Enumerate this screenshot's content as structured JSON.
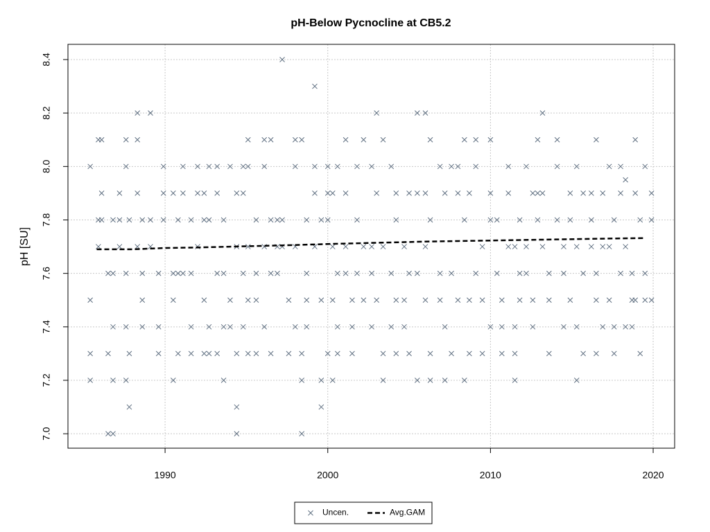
{
  "chart_data": {
    "type": "scatter",
    "title": "pH-Below Pycnocline at CB5.2",
    "y_label": "pH [SU]",
    "xlim": [
      1984.03,
      2021.32
    ],
    "ylim": [
      6.946,
      8.457
    ],
    "xticks": [
      1990,
      2000,
      2010,
      2020
    ],
    "yticks": [
      {
        "value": 7,
        "label": "7.0"
      },
      7.2,
      7.4,
      7.6,
      7.8,
      {
        "value": 8,
        "label": "8.0"
      },
      8.2,
      8.4
    ],
    "grid": true,
    "legend": "bottom",
    "series": [
      {
        "name": "Uncen.",
        "color": "#5e6e80",
        "marker": "x",
        "x": [
          1985.4,
          1985.4,
          1985.4,
          1985.4,
          1985.9,
          1985.9,
          1985.9,
          1986.1,
          1986.1,
          1986.1,
          1986.5,
          1986.5,
          1986.5,
          1986.8,
          1986.8,
          1986.8,
          1986.8,
          1986.8,
          1987.2,
          1987.2,
          1987.2,
          1987.6,
          1987.6,
          1987.6,
          1987.6,
          1987.6,
          1987.8,
          1987.8,
          1987.8,
          1988.3,
          1988.3,
          1988.3,
          1988.3,
          1988.6,
          1988.6,
          1988.6,
          1988.6,
          1989.1,
          1989.1,
          1989.1,
          1989.6,
          1989.6,
          1989.6,
          1989.9,
          1989.9,
          1989.9,
          1990.5,
          1990.5,
          1990.5,
          1990.5,
          1990.8,
          1990.8,
          1990.8,
          1991.1,
          1991.1,
          1991.1,
          1991.6,
          1991.6,
          1991.6,
          1991.6,
          1992.0,
          1992.0,
          1992.0,
          1992.4,
          1992.4,
          1992.4,
          1992.4,
          1992.7,
          1992.7,
          1992.7,
          1992.7,
          1993.2,
          1993.2,
          1993.2,
          1993.2,
          1993.6,
          1993.6,
          1993.6,
          1993.6,
          1994.0,
          1994.0,
          1994.0,
          1994.4,
          1994.4,
          1994.4,
          1994.4,
          1994.4,
          1994.8,
          1994.8,
          1994.8,
          1994.8,
          1995.1,
          1995.1,
          1995.1,
          1995.1,
          1995.1,
          1995.6,
          1995.6,
          1995.6,
          1995.6,
          1996.1,
          1996.1,
          1996.1,
          1996.1,
          1996.5,
          1996.5,
          1996.5,
          1996.5,
          1996.9,
          1996.9,
          1996.9,
          1997.2,
          1997.2,
          1997.2,
          1997.6,
          1997.6,
          1998.0,
          1998.0,
          1998.0,
          1998.0,
          1998.4,
          1998.4,
          1998.4,
          1998.4,
          1998.7,
          1998.7,
          1998.7,
          1998.7,
          1999.2,
          1999.2,
          1999.2,
          1999.2,
          1999.6,
          1999.6,
          1999.6,
          1999.6,
          2000.0,
          2000.0,
          2000.0,
          2000.0,
          2000.3,
          2000.3,
          2000.3,
          2000.3,
          2000.6,
          2000.6,
          2000.6,
          2000.6,
          2001.1,
          2001.1,
          2001.1,
          2001.1,
          2001.5,
          2001.5,
          2001.5,
          2001.8,
          2001.8,
          2001.8,
          2002.2,
          2002.2,
          2002.2,
          2002.7,
          2002.7,
          2002.7,
          2002.7,
          2003.0,
          2003.0,
          2003.0,
          2003.4,
          2003.4,
          2003.4,
          2003.4,
          2003.9,
          2003.9,
          2003.9,
          2004.2,
          2004.2,
          2004.2,
          2004.2,
          2004.7,
          2004.7,
          2004.7,
          2005.0,
          2005.0,
          2005.0,
          2005.5,
          2005.5,
          2005.5,
          2005.5,
          2006.0,
          2006.0,
          2006.0,
          2006.0,
          2006.3,
          2006.3,
          2006.3,
          2006.3,
          2006.9,
          2006.9,
          2006.9,
          2007.2,
          2007.2,
          2007.2,
          2007.6,
          2007.6,
          2007.6,
          2008.0,
          2008.0,
          2008.0,
          2008.4,
          2008.4,
          2008.4,
          2008.7,
          2008.7,
          2008.7,
          2009.1,
          2009.1,
          2009.1,
          2009.5,
          2009.5,
          2009.5,
          2010.0,
          2010.0,
          2010.0,
          2010.0,
          2010.4,
          2010.4,
          2010.7,
          2010.7,
          2010.7,
          2011.1,
          2011.1,
          2011.1,
          2011.5,
          2011.5,
          2011.5,
          2011.5,
          2011.8,
          2011.8,
          2011.8,
          2012.2,
          2012.2,
          2012.2,
          2012.6,
          2012.6,
          2012.6,
          2012.9,
          2012.9,
          2012.9,
          2013.2,
          2013.2,
          2013.2,
          2013.6,
          2013.6,
          2013.6,
          2014.1,
          2014.1,
          2014.1,
          2014.5,
          2014.5,
          2014.5,
          2014.9,
          2014.9,
          2014.9,
          2015.3,
          2015.3,
          2015.3,
          2015.3,
          2015.7,
          2015.7,
          2015.7,
          2016.2,
          2016.2,
          2016.2,
          2016.5,
          2016.5,
          2016.5,
          2016.5,
          2016.9,
          2016.9,
          2016.9,
          2017.3,
          2017.3,
          2017.3,
          2017.6,
          2017.6,
          2017.6,
          2018.0,
          2018.0,
          2018.0,
          2018.3,
          2018.3,
          2018.3,
          2018.7,
          2018.7,
          2018.7,
          2018.9,
          2018.9,
          2018.9,
          2019.2,
          2019.2,
          2019.5,
          2019.5,
          2019.5,
          2019.9,
          2019.9,
          2019.9
        ],
        "values": [
          8.0,
          7.5,
          7.3,
          7.2,
          8.1,
          7.8,
          7.7,
          8.1,
          7.9,
          7.8,
          7.6,
          7.3,
          7.0,
          7.4,
          7.2,
          7.0,
          7.6,
          7.8,
          7.8,
          7.7,
          7.9,
          8.1,
          8.0,
          7.6,
          7.4,
          7.2,
          7.3,
          7.1,
          7.8,
          8.2,
          8.1,
          7.9,
          7.7,
          7.5,
          7.4,
          7.6,
          7.8,
          8.2,
          7.8,
          7.7,
          7.4,
          7.3,
          7.6,
          8.0,
          7.9,
          7.8,
          7.5,
          7.2,
          7.9,
          7.6,
          7.3,
          7.6,
          7.8,
          8.0,
          7.9,
          7.6,
          7.4,
          7.3,
          7.6,
          7.8,
          8.0,
          7.9,
          7.7,
          7.9,
          7.5,
          7.3,
          7.8,
          7.4,
          7.3,
          7.8,
          8.0,
          8.0,
          7.9,
          7.6,
          7.3,
          7.4,
          7.2,
          7.6,
          7.8,
          8.0,
          7.5,
          7.4,
          7.9,
          7.7,
          7.0,
          7.1,
          7.3,
          8.0,
          7.9,
          7.6,
          7.4,
          8.1,
          8.0,
          7.7,
          7.5,
          7.3,
          7.5,
          7.3,
          7.6,
          7.8,
          8.1,
          8.0,
          7.7,
          7.4,
          8.1,
          7.8,
          7.3,
          7.6,
          7.8,
          7.6,
          7.7,
          8.4,
          7.8,
          7.7,
          7.5,
          7.3,
          8.1,
          8.0,
          7.7,
          7.4,
          8.1,
          7.3,
          7.2,
          7.0,
          7.5,
          7.4,
          7.6,
          7.8,
          8.3,
          8.0,
          7.9,
          7.7,
          7.5,
          7.2,
          7.1,
          7.8,
          7.9,
          7.8,
          8.0,
          7.3,
          7.7,
          7.2,
          7.9,
          7.5,
          8.0,
          7.6,
          7.3,
          7.4,
          8.1,
          7.9,
          7.7,
          7.6,
          7.5,
          7.4,
          7.3,
          7.8,
          8.0,
          7.6,
          8.1,
          7.7,
          7.5,
          7.6,
          7.4,
          8.0,
          7.7,
          8.2,
          7.9,
          7.5,
          8.1,
          7.3,
          7.2,
          7.7,
          8.0,
          7.6,
          7.4,
          7.9,
          7.5,
          7.3,
          7.8,
          7.7,
          7.5,
          7.4,
          7.9,
          7.6,
          7.3,
          8.2,
          7.9,
          7.6,
          7.2,
          8.2,
          7.9,
          7.5,
          7.7,
          8.1,
          7.8,
          7.3,
          7.2,
          8.0,
          7.6,
          7.5,
          7.9,
          7.4,
          7.2,
          8.0,
          7.6,
          7.3,
          8.0,
          7.9,
          7.5,
          8.1,
          7.8,
          7.2,
          7.5,
          7.3,
          7.9,
          8.1,
          8.0,
          7.6,
          7.5,
          7.3,
          7.7,
          8.1,
          7.9,
          7.8,
          7.4,
          7.6,
          7.8,
          7.5,
          7.4,
          7.3,
          8.0,
          7.9,
          7.7,
          7.2,
          7.4,
          7.3,
          7.7,
          7.8,
          7.6,
          7.5,
          8.0,
          7.7,
          7.6,
          7.9,
          7.4,
          7.5,
          8.1,
          7.9,
          7.8,
          8.2,
          7.9,
          7.7,
          7.5,
          7.3,
          7.6,
          8.1,
          8.0,
          7.8,
          7.7,
          7.4,
          7.6,
          7.9,
          7.8,
          7.5,
          8.0,
          7.7,
          7.2,
          7.4,
          7.9,
          7.3,
          7.6,
          7.8,
          7.7,
          7.9,
          8.1,
          7.5,
          7.3,
          7.6,
          7.9,
          7.4,
          7.7,
          8.0,
          7.7,
          7.5,
          7.4,
          7.3,
          7.8,
          8.0,
          7.9,
          7.6,
          7.95,
          7.7,
          7.4,
          7.5,
          7.4,
          7.6,
          8.1,
          7.9,
          7.5,
          7.8,
          7.3,
          7.6,
          7.5,
          8.0,
          7.9,
          7.8,
          7.5
        ]
      },
      {
        "name": "Avg.GAM",
        "color": "#000000",
        "dash": true,
        "x": [
          1985.8,
          1986.5,
          1988,
          1990,
          1992,
          1994,
          1996,
          1998,
          2000,
          2002,
          2004,
          2006,
          2008,
          2010,
          2012,
          2014,
          2016,
          2018,
          2019.5
        ],
        "values": [
          7.69,
          7.69,
          7.69,
          7.695,
          7.697,
          7.7,
          7.703,
          7.706,
          7.71,
          7.713,
          7.716,
          7.719,
          7.721,
          7.723,
          7.725,
          7.727,
          7.729,
          7.731,
          7.732
        ]
      }
    ]
  }
}
